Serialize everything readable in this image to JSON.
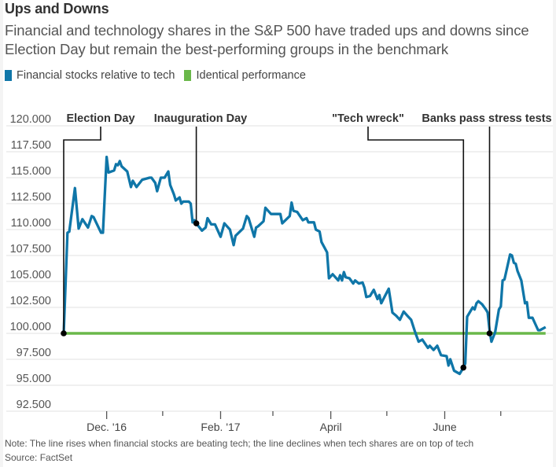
{
  "header": {
    "title": "Ups and Downs",
    "subtitle": "Financial and technology shares in the S&P 500 have traded ups and downs since Election Day but remain the best-performing groups in the benchmark"
  },
  "legend": [
    {
      "label": "Financial stocks relative to tech",
      "color": "#0f76a8"
    },
    {
      "label": "Identical performance",
      "color": "#6ab84a"
    }
  ],
  "footer": {
    "note": "Note: The line rises when financial stocks are beating tech; the line declines when tech shares are on top of tech",
    "source": "Source: FactSet"
  },
  "chart_data": {
    "type": "line",
    "title": "Ups and Downs",
    "xlabel": "",
    "ylabel": "",
    "ylim": [
      92.5,
      120
    ],
    "yticks": [
      120,
      117.5,
      115,
      112.5,
      110,
      107.5,
      105,
      102.5,
      100,
      97.5,
      95,
      92.5
    ],
    "ytick_labels": [
      "120.000",
      "117.500",
      "115.000",
      "112.500",
      "110.000",
      "107.500",
      "105.000",
      "102.500",
      "100.000",
      "97.500",
      "95.000",
      "92.500"
    ],
    "xlim_days": [
      0,
      237
    ],
    "x_unit": "days since Election Day (Nov. 8, 2016)",
    "xticks": [
      {
        "day": 23,
        "label": "Dec. '16"
      },
      {
        "day": 53,
        "label": ""
      },
      {
        "day": 84,
        "label": "Feb. '17"
      },
      {
        "day": 112,
        "label": ""
      },
      {
        "day": 143,
        "label": "April"
      },
      {
        "day": 173,
        "label": ""
      },
      {
        "day": 204,
        "label": "June"
      },
      {
        "day": 234,
        "label": ""
      }
    ],
    "grid": true,
    "legend_position": "top-left",
    "series": [
      {
        "name": "Financial stocks relative to tech",
        "color": "#0f76a8",
        "points": [
          [
            0,
            100.0
          ],
          [
            2,
            109.7
          ],
          [
            3,
            109.8
          ],
          [
            6,
            114.0
          ],
          [
            8,
            110.1
          ],
          [
            10,
            111.0
          ],
          [
            13,
            110.2
          ],
          [
            15,
            111.3
          ],
          [
            16,
            111.2
          ],
          [
            20,
            109.7
          ],
          [
            21,
            109.7
          ],
          [
            23,
            117.0
          ],
          [
            24,
            115.5
          ],
          [
            27,
            115.7
          ],
          [
            28,
            116.3
          ],
          [
            29,
            116.2
          ],
          [
            30,
            116.6
          ],
          [
            31,
            116.1
          ],
          [
            34,
            115.6
          ],
          [
            36,
            114.1
          ],
          [
            37,
            114.7
          ],
          [
            39,
            114.1
          ],
          [
            42,
            114.8
          ],
          [
            46,
            115.0
          ],
          [
            47,
            115.0
          ],
          [
            49,
            114.5
          ],
          [
            50,
            113.7
          ],
          [
            52,
            115.0
          ],
          [
            54,
            115.0
          ],
          [
            56,
            115.6
          ],
          [
            57,
            114.3
          ],
          [
            59,
            113.4
          ],
          [
            60,
            112.8
          ],
          [
            62,
            113.1
          ],
          [
            63,
            112.5
          ],
          [
            64,
            112.7
          ],
          [
            67,
            112.7
          ],
          [
            68,
            112.5
          ],
          [
            69,
            110.7
          ],
          [
            70,
            110.9
          ],
          [
            71,
            110.6
          ],
          [
            74,
            109.9
          ],
          [
            76,
            110.2
          ],
          [
            77,
            111.1
          ],
          [
            79,
            110.5
          ],
          [
            81,
            110.5
          ],
          [
            84,
            109.3
          ],
          [
            86,
            110.6
          ],
          [
            87,
            110.4
          ],
          [
            89,
            110.0
          ],
          [
            91,
            108.5
          ],
          [
            92,
            109.4
          ],
          [
            96,
            110.1
          ],
          [
            98,
            111.3
          ],
          [
            99,
            111.1
          ],
          [
            102,
            109.3
          ],
          [
            103,
            110.2
          ],
          [
            104,
            110.3
          ],
          [
            107,
            110.8
          ],
          [
            108,
            112.1
          ],
          [
            111,
            111.5
          ],
          [
            115,
            111.5
          ],
          [
            116,
            111.5
          ],
          [
            117,
            110.6
          ],
          [
            121,
            111.3
          ],
          [
            122,
            112.6
          ],
          [
            123,
            111.8
          ],
          [
            125,
            111.7
          ],
          [
            128,
            110.9
          ],
          [
            130,
            111.1
          ],
          [
            131,
            110.7
          ],
          [
            134,
            110.7
          ],
          [
            135,
            110.0
          ],
          [
            137,
            109.8
          ],
          [
            138,
            108.8
          ],
          [
            141,
            107.8
          ],
          [
            142,
            105.3
          ],
          [
            144,
            105.7
          ],
          [
            147,
            105.1
          ],
          [
            148,
            105.6
          ],
          [
            149,
            105.1
          ],
          [
            150,
            105.9
          ],
          [
            151,
            105.4
          ],
          [
            153,
            105.3
          ],
          [
            155,
            104.8
          ],
          [
            156,
            105.1
          ],
          [
            158,
            104.8
          ],
          [
            160,
            104.9
          ],
          [
            161,
            104.4
          ],
          [
            162,
            103.5
          ],
          [
            164,
            103.6
          ],
          [
            166,
            104.2
          ],
          [
            168,
            103.3
          ],
          [
            169,
            103.7
          ],
          [
            170,
            102.9
          ],
          [
            172,
            103.6
          ],
          [
            174,
            104.3
          ],
          [
            176,
            102.0
          ],
          [
            178,
            101.7
          ],
          [
            180,
            101.3
          ],
          [
            182,
            102.1
          ],
          [
            184,
            101.7
          ],
          [
            186,
            101.3
          ],
          [
            188,
            100.2
          ],
          [
            190,
            99.2
          ],
          [
            192,
            99.4
          ],
          [
            195,
            98.6
          ],
          [
            196,
            98.8
          ],
          [
            198,
            98.4
          ],
          [
            200,
            98.8
          ],
          [
            202,
            97.9
          ],
          [
            205,
            97.8
          ],
          [
            206,
            96.9
          ],
          [
            207,
            97.5
          ],
          [
            209,
            96.4
          ],
          [
            212,
            96.1
          ],
          [
            214,
            96.7
          ],
          [
            215,
            97.1
          ],
          [
            216,
            101.6
          ],
          [
            217,
            101.9
          ],
          [
            219,
            102.5
          ],
          [
            220,
            102.3
          ],
          [
            221,
            102.9
          ],
          [
            222,
            103.1
          ],
          [
            224,
            102.8
          ],
          [
            226,
            102.3
          ],
          [
            227,
            102.0
          ],
          [
            228,
            100.3
          ],
          [
            229,
            99.2
          ],
          [
            231,
            100.1
          ],
          [
            233,
            102.3
          ],
          [
            234,
            102.6
          ],
          [
            235,
            105.1
          ],
          [
            236,
            105.2
          ],
          [
            239,
            107.6
          ],
          [
            240,
            107.5
          ],
          [
            241,
            106.8
          ],
          [
            242,
            106.7
          ],
          [
            243,
            106.0
          ],
          [
            245,
            105.1
          ],
          [
            247,
            102.9
          ],
          [
            248,
            103.0
          ],
          [
            249,
            101.5
          ],
          [
            251,
            101.5
          ],
          [
            252,
            101.1
          ],
          [
            254,
            100.3
          ],
          [
            255,
            100.3
          ],
          [
            258,
            100.6
          ]
        ]
      },
      {
        "name": "Identical performance",
        "color": "#6ab84a",
        "points": [
          [
            0,
            100
          ],
          [
            258,
            100
          ]
        ]
      }
    ],
    "annotations": [
      {
        "label": "Election Day",
        "day": 0,
        "value": 100.0
      },
      {
        "label": "Inauguration Day",
        "day": 71,
        "value": 110.6
      },
      {
        "label": "\"Tech wreck\"",
        "day": 214,
        "value": 96.7
      },
      {
        "label": "Banks pass stress tests",
        "day": 228,
        "value": 100.0
      }
    ]
  }
}
